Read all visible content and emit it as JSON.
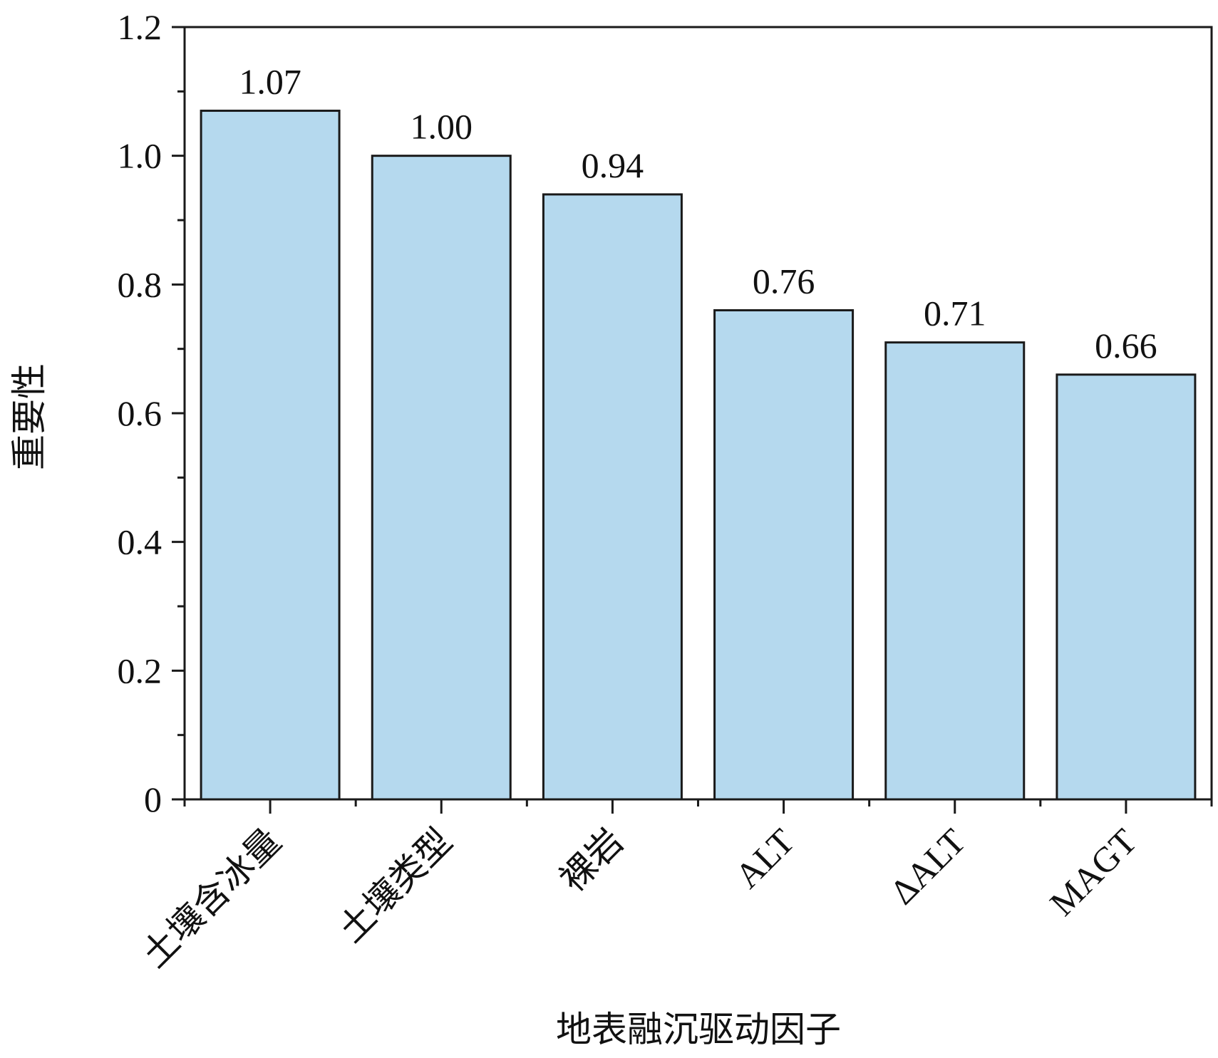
{
  "chart_data": {
    "type": "bar",
    "title": "",
    "xlabel": "地表融沉驱动因子",
    "ylabel": "重要性",
    "categories": [
      "土壤含冰量",
      "土壤类型",
      "裸岩",
      "ALT",
      "ΔALT",
      "MAGT"
    ],
    "values": [
      1.07,
      1.0,
      0.94,
      0.76,
      0.71,
      0.66
    ],
    "value_labels": [
      "1.07",
      "1.00",
      "0.94",
      "0.76",
      "0.71",
      "0.66"
    ],
    "ylim": [
      0,
      1.2
    ],
    "y_ticks": [
      0,
      0.2,
      0.4,
      0.6,
      0.8,
      1.0,
      1.2
    ],
    "y_tick_labels": [
      "0",
      "0.2",
      "0.4",
      "0.6",
      "0.8",
      "1.0",
      "1.2"
    ],
    "grid": false,
    "colors": {
      "bar_fill": "#b5d9ee",
      "bar_stroke": "#1a1a1a",
      "axis": "#1a1a1a"
    }
  }
}
